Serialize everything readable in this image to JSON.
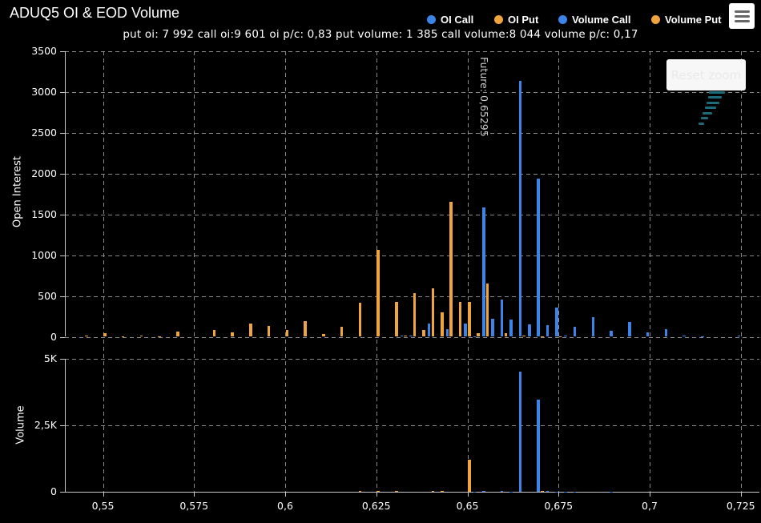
{
  "title": "ADUQ5 OI & EOD Volume",
  "subtitle": "put oi: 7 992 call oi:9 601 oi p/c: 0,83 put volume: 1 385 call volume:8 044 volume p/c: 0,17",
  "buttons": {
    "reset_zoom": "Reset zoom"
  },
  "menu_icon": "hamburger-icon",
  "colors": {
    "call": "#3d84e8",
    "put": "#f0a43c",
    "background": "#000000",
    "gridline": "#8a8a8a",
    "axis_line": "#c8c8c8",
    "text": "#ffffff",
    "watermark": "#1d6b7a"
  },
  "legend": {
    "items": [
      {
        "label": "OI Call",
        "color": "#3d84e8"
      },
      {
        "label": "OI Put",
        "color": "#f0a43c"
      },
      {
        "label": "Volume Call",
        "color": "#3d84e8"
      },
      {
        "label": "Volume Put",
        "color": "#f0a43c"
      }
    ]
  },
  "future_line": {
    "label": "Future: 0,65295",
    "value": 0.65295
  },
  "x_axis": {
    "ticks": [
      {
        "value": 0.55,
        "label": "0,55"
      },
      {
        "value": 0.575,
        "label": "0,575"
      },
      {
        "value": 0.6,
        "label": "0,6"
      },
      {
        "value": 0.625,
        "label": "0,625"
      },
      {
        "value": 0.65,
        "label": "0,65"
      },
      {
        "value": 0.675,
        "label": "0,675"
      },
      {
        "value": 0.7,
        "label": "0,7"
      },
      {
        "value": 0.725,
        "label": "0,725"
      }
    ]
  },
  "chart_data": [
    {
      "type": "bar",
      "ylabel": "Open Interest",
      "ylim": [
        0,
        3500
      ],
      "yticks": [
        {
          "value": 0,
          "label": "0"
        },
        {
          "value": 500,
          "label": "500"
        },
        {
          "value": 1000,
          "label": "1000"
        },
        {
          "value": 1500,
          "label": "1500"
        },
        {
          "value": 2000,
          "label": "2000"
        },
        {
          "value": 2500,
          "label": "2500"
        },
        {
          "value": 3000,
          "label": "3000"
        },
        {
          "value": 3500,
          "label": "3500"
        }
      ],
      "xlim": [
        0.5396,
        0.7301
      ],
      "x": [
        0.545,
        0.55,
        0.555,
        0.56,
        0.565,
        0.57,
        0.58,
        0.585,
        0.59,
        0.595,
        0.6,
        0.605,
        0.61,
        0.615,
        0.62,
        0.625,
        0.63,
        0.6325,
        0.635,
        0.6375,
        0.64,
        0.6425,
        0.645,
        0.6475,
        0.65,
        0.6525,
        0.655,
        0.6575,
        0.66,
        0.6625,
        0.665,
        0.6675,
        0.67,
        0.6725,
        0.675,
        0.6775,
        0.68,
        0.685,
        0.69,
        0.695,
        0.7,
        0.705,
        0.71,
        0.715,
        0.725
      ],
      "series": [
        {
          "name": "OI Call",
          "color": "#3d84e8",
          "values": [
            0,
            0,
            0,
            0,
            0,
            0,
            0,
            0,
            0,
            0,
            0,
            0,
            0,
            0,
            0,
            0,
            0,
            10,
            14,
            0,
            158,
            0,
            93,
            0,
            165,
            8,
            1580,
            225,
            460,
            215,
            3130,
            150,
            1940,
            142,
            358,
            15,
            127,
            243,
            72,
            185,
            55,
            90,
            10,
            8,
            12
          ]
        },
        {
          "name": "OI Put",
          "color": "#f0a43c",
          "values": [
            13,
            40,
            6,
            17,
            6,
            65,
            85,
            56,
            158,
            130,
            88,
            190,
            32,
            125,
            413,
            1060,
            430,
            12,
            530,
            82,
            595,
            300,
            1650,
            430,
            423,
            48,
            652,
            0,
            40,
            0,
            12,
            0,
            9,
            0,
            8,
            0,
            0,
            0,
            0,
            0,
            0,
            0,
            0,
            0,
            0
          ]
        }
      ]
    },
    {
      "type": "bar",
      "ylabel": "Volume",
      "ylim": [
        0,
        5000
      ],
      "yticks": [
        {
          "value": 0,
          "label": "0"
        },
        {
          "value": 2500,
          "label": "2,5K"
        },
        {
          "value": 5000,
          "label": "5K"
        }
      ],
      "xlim": [
        0.5396,
        0.7301
      ],
      "x": [
        0.62,
        0.625,
        0.63,
        0.64,
        0.6425,
        0.65,
        0.6525,
        0.655,
        0.66,
        0.6625,
        0.665,
        0.67,
        0.6725,
        0.675,
        0.6775,
        0.68,
        0.69
      ],
      "series": [
        {
          "name": "Volume Call",
          "color": "#3d84e8",
          "values": [
            0,
            0,
            0,
            0,
            0,
            0,
            15,
            20,
            20,
            12,
            4530,
            3450,
            25,
            12,
            12,
            10,
            10
          ]
        },
        {
          "name": "Volume Put",
          "color": "#f0a43c",
          "values": [
            25,
            18,
            20,
            45,
            20,
            1210,
            0,
            0,
            0,
            0,
            0,
            30,
            0,
            0,
            0,
            0,
            0
          ]
        }
      ]
    }
  ]
}
